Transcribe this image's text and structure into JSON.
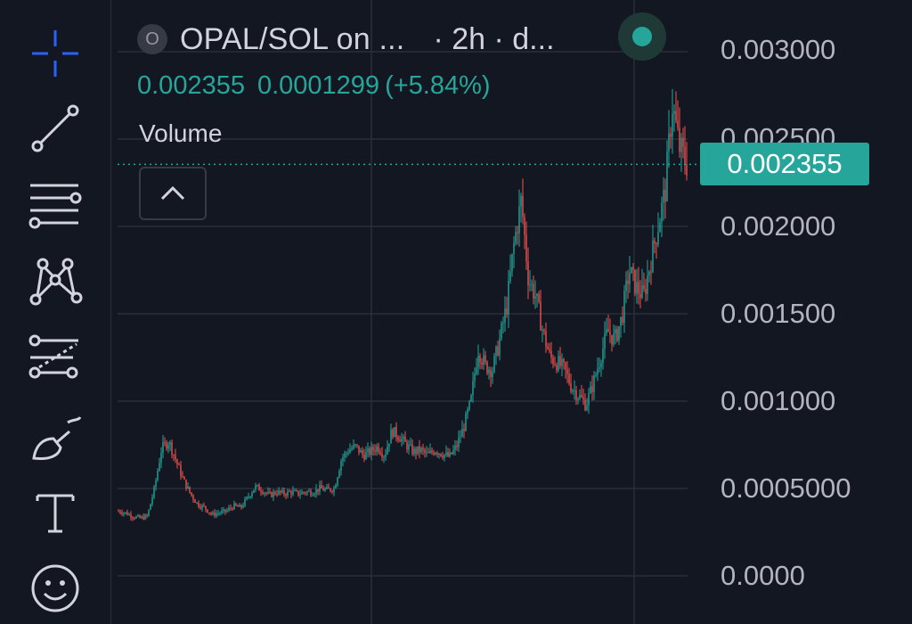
{
  "toolbar": {
    "tools": [
      {
        "name": "crosshair-icon"
      },
      {
        "name": "trend-line-icon"
      },
      {
        "name": "fib-lines-icon"
      },
      {
        "name": "pattern-icon"
      },
      {
        "name": "prediction-icon"
      },
      {
        "name": "brush-icon"
      },
      {
        "name": "text-icon"
      },
      {
        "name": "emoji-icon"
      }
    ]
  },
  "header": {
    "symbol_badge": "O",
    "symbol_title": "OPAL/SOL on ...",
    "interval": "· 2h · d...",
    "status_color": "#26a69a"
  },
  "ohlc": {
    "price": "0.002355",
    "change": "0.0001299",
    "change_pct": "(+5.84%)"
  },
  "volume_label": "Volume",
  "price_axis": {
    "labels": [
      "0.003000",
      "0.002500",
      "0.002000",
      "0.001500",
      "0.001000",
      "0.0005000",
      "0.0000"
    ],
    "current_price_tag": "0.002355"
  },
  "colors": {
    "up": "#26a69a",
    "down": "#ef5350",
    "background": "#131722",
    "grid": "#2a2e39"
  },
  "chart_data": {
    "type": "candlestick",
    "pair": "OPAL/SOL",
    "interval": "2h",
    "ylim": [
      0,
      0.003
    ],
    "y_ticks": [
      0,
      0.0005,
      0.001,
      0.0015,
      0.002,
      0.0025,
      0.003
    ],
    "current_price": 0.002355,
    "close_path": [
      0.00037,
      0.00036,
      0.00034,
      0.00033,
      0.00034,
      0.0005,
      0.00073,
      0.00077,
      0.00066,
      0.00055,
      0.00047,
      0.00041,
      0.00039,
      0.00035,
      0.00036,
      0.00037,
      0.0004,
      0.00039,
      0.00045,
      0.00051,
      0.00049,
      0.00046,
      0.00048,
      0.00047,
      0.00048,
      0.00047,
      0.00048,
      0.00048,
      0.0005,
      0.00049,
      0.0005,
      0.00067,
      0.00072,
      0.00074,
      0.00069,
      0.00071,
      0.00074,
      0.00069,
      0.00083,
      0.0008,
      0.00075,
      0.00071,
      0.00072,
      0.00069,
      0.00072,
      0.0007,
      0.00068,
      0.00074,
      0.00085,
      0.001,
      0.0013,
      0.0012,
      0.00118,
      0.00135,
      0.00155,
      0.0019,
      0.00215,
      0.0017,
      0.0016,
      0.0014,
      0.00125,
      0.00122,
      0.00118,
      0.00108,
      0.00103,
      0.00098,
      0.0011,
      0.00125,
      0.0014,
      0.00135,
      0.00148,
      0.00175,
      0.00165,
      0.0016,
      0.0018,
      0.002,
      0.0022,
      0.0027,
      0.00245,
      0.00236
    ]
  }
}
